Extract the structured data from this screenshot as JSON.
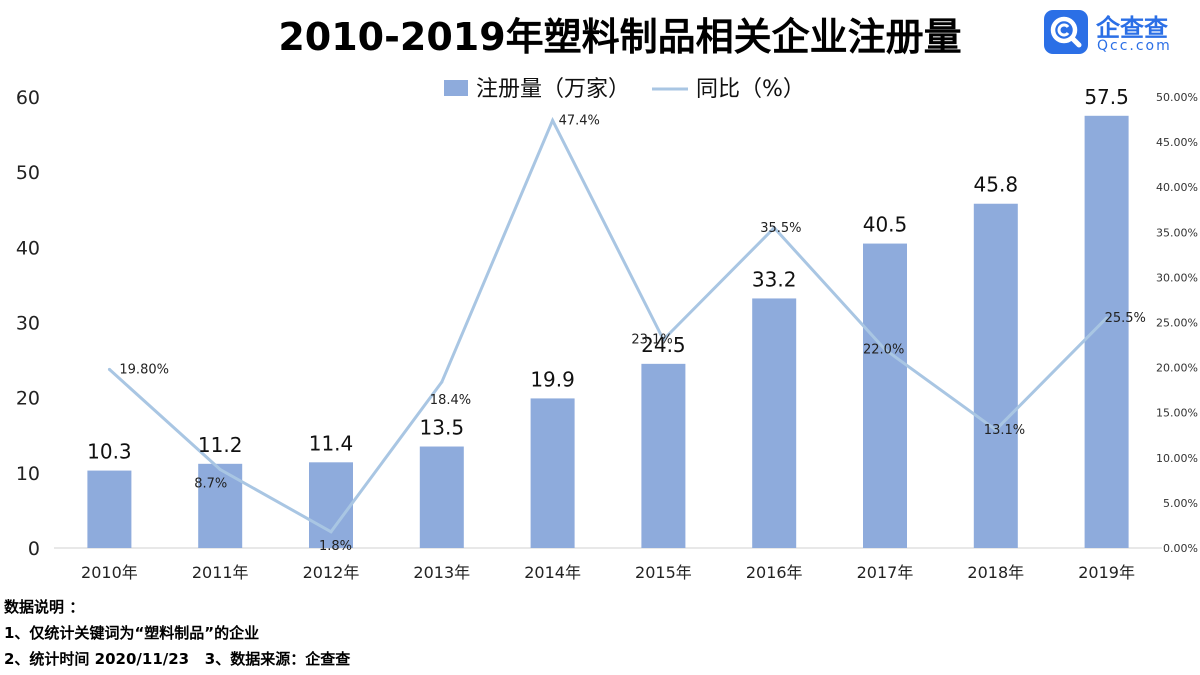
{
  "title": "2010-2019年塑料制品相关企业注册量",
  "brand": {
    "name": "企查查",
    "url": "Qcc.com",
    "color": "#2b6fe6"
  },
  "chart_data": {
    "type": "bar",
    "title": "2010-2019年塑料制品相关企业注册量",
    "categories": [
      "2010年",
      "2011年",
      "2012年",
      "2013年",
      "2014年",
      "2015年",
      "2016年",
      "2017年",
      "2018年",
      "2019年"
    ],
    "series": [
      {
        "name": "注册量（万家）",
        "kind": "bar",
        "axis": "left",
        "color": "#8eabdc",
        "values": [
          10.3,
          11.2,
          11.4,
          13.5,
          19.9,
          24.5,
          33.2,
          40.5,
          45.8,
          57.5
        ],
        "labels": [
          "10.3",
          "11.2",
          "11.4",
          "13.5",
          "19.9",
          "24.5",
          "33.2",
          "40.5",
          "45.8",
          "57.5"
        ]
      },
      {
        "name": "同比（%）",
        "kind": "line",
        "axis": "right",
        "color": "#a9c6e3",
        "values": [
          19.8,
          8.7,
          1.8,
          18.4,
          47.4,
          23.1,
          35.5,
          22.0,
          13.1,
          25.5
        ],
        "labels": [
          "19.80%",
          "8.7%",
          "1.8%",
          "18.4%",
          "47.4%",
          "23.1%",
          "35.5%",
          "22.0%",
          "13.1%",
          "25.5%"
        ]
      }
    ],
    "y_left": {
      "min": 0,
      "max": 60,
      "ticks": [
        "0",
        "10",
        "20",
        "30",
        "40",
        "50",
        "60"
      ]
    },
    "y_right": {
      "min": 0,
      "max": 50,
      "ticks": [
        "0.00%",
        "5.00%",
        "10.00%",
        "15.00%",
        "20.00%",
        "25.00%",
        "30.00%",
        "35.00%",
        "40.00%",
        "45.00%",
        "50.00%"
      ]
    },
    "legend_position": "top-center",
    "grid": false
  },
  "notes": [
    "数据说明 ：",
    "1、仅统计关键词为“塑料制品”的企业",
    "2、统计时间 2020/11/23   3、数据来源：企查查"
  ]
}
